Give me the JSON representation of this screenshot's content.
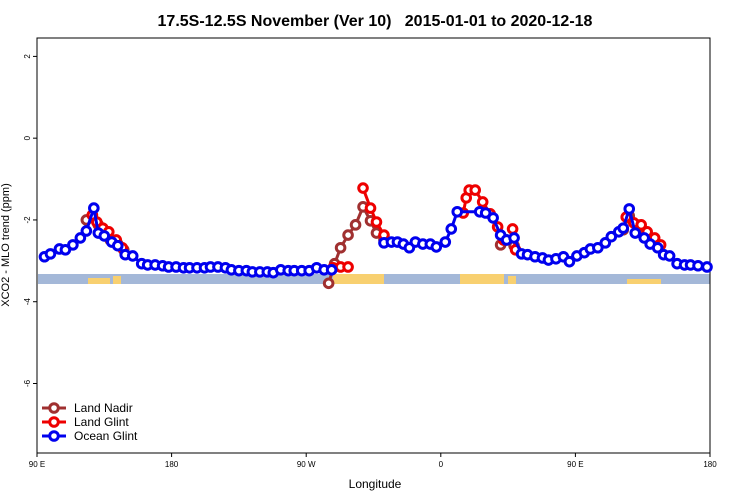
{
  "chart_data": {
    "type": "line",
    "title": "17.5S-12.5S November (Ver 10)   2015-01-01 to 2020-12-18",
    "xlabel": "Longitude",
    "ylabel": "XCO2 - MLO trend (ppm)",
    "xlim": [
      90,
      540
    ],
    "ylim": [
      -7.7,
      2.45
    ],
    "xticks": [
      {
        "value": 90,
        "label": "90 E"
      },
      {
        "value": 180,
        "label": "180"
      },
      {
        "value": 270,
        "label": "90 W"
      },
      {
        "value": 360,
        "label": "0"
      },
      {
        "value": 450,
        "label": "90 E"
      },
      {
        "value": 540,
        "label": "180"
      }
    ],
    "yticks": [
      2,
      0,
      -2,
      -4,
      -6
    ],
    "legend": "bottom-left",
    "series": [
      {
        "name": "Land Nadir",
        "color": "#a03030",
        "x": [
          123,
          127,
          131,
          135,
          139,
          144,
          148,
          200,
          285,
          289,
          293,
          298,
          303,
          308,
          313,
          317,
          322,
          360,
          400,
          404,
          409,
          440,
          482,
          486,
          491,
          496,
          500,
          505
        ],
        "values": [
          -2.0,
          -1.88,
          -2.12,
          -2.29,
          -2.49,
          -2.59,
          -2.73,
          null,
          -3.55,
          -3.07,
          -2.68,
          -2.37,
          -2.12,
          -1.68,
          -2.02,
          -2.32,
          -2.49,
          null,
          -2.61,
          -2.49,
          -2.63,
          null,
          -2.24,
          -1.9,
          -2.12,
          -2.29,
          -2.49,
          -2.63
        ]
      },
      {
        "name": "Land Glint",
        "color": "#ee0000",
        "x": [
          127,
          130,
          134,
          138,
          143,
          147,
          200,
          288,
          293,
          298,
          303,
          308,
          313,
          317,
          322,
          350,
          375,
          377,
          379,
          383,
          388,
          393,
          398,
          402,
          405,
          408,
          410,
          440,
          484,
          489,
          494,
          498,
          503,
          507
        ],
        "values": [
          -1.88,
          -2.05,
          -2.2,
          -2.29,
          -2.49,
          -2.68,
          null,
          -3.17,
          -3.15,
          -3.15,
          null,
          -1.22,
          -1.71,
          -2.05,
          -2.37,
          null,
          -1.83,
          -1.46,
          -1.27,
          -1.27,
          -1.56,
          -1.85,
          -2.17,
          -2.49,
          null,
          -2.22,
          -2.73,
          null,
          -1.93,
          -2.07,
          -2.12,
          -2.29,
          -2.44,
          -2.61
        ]
      },
      {
        "name": "Ocean Glint",
        "color": "#0000ee",
        "x": [
          95,
          99,
          105,
          109,
          114,
          119,
          123,
          128,
          131,
          135,
          140,
          144,
          149,
          154,
          160,
          164,
          169,
          174,
          178,
          183,
          188,
          192,
          197,
          202,
          206,
          211,
          216,
          220,
          225,
          230,
          234,
          239,
          244,
          248,
          253,
          258,
          262,
          267,
          272,
          277,
          282,
          287,
          305,
          322,
          327,
          331,
          335,
          339,
          343,
          348,
          353,
          357,
          363,
          367,
          371,
          386,
          390,
          395,
          400,
          404,
          409,
          414,
          418,
          423,
          428,
          432,
          437,
          442,
          446,
          451,
          456,
          460,
          465,
          470,
          474,
          479,
          482,
          486,
          490,
          496,
          500,
          505,
          509,
          513,
          518,
          523,
          527,
          532,
          538
        ],
        "values": [
          -2.9,
          -2.83,
          -2.71,
          -2.73,
          -2.61,
          -2.44,
          -2.27,
          -1.71,
          -2.32,
          -2.39,
          -2.54,
          -2.63,
          -2.85,
          -2.88,
          -3.07,
          -3.1,
          -3.1,
          -3.12,
          -3.15,
          -3.15,
          -3.17,
          -3.17,
          -3.17,
          -3.17,
          -3.15,
          -3.15,
          -3.17,
          -3.22,
          -3.24,
          -3.24,
          -3.27,
          -3.27,
          -3.27,
          -3.29,
          -3.22,
          -3.24,
          -3.24,
          -3.24,
          -3.24,
          -3.17,
          -3.22,
          -3.22,
          null,
          -2.56,
          -2.54,
          -2.54,
          -2.59,
          -2.68,
          -2.54,
          -2.59,
          -2.59,
          -2.66,
          -2.54,
          -2.22,
          -1.8,
          -1.8,
          -1.83,
          -1.95,
          -2.37,
          -2.49,
          -2.44,
          -2.83,
          -2.85,
          -2.9,
          -2.93,
          -2.98,
          -2.95,
          -2.9,
          -3.02,
          -2.88,
          -2.8,
          -2.71,
          -2.68,
          -2.56,
          -2.41,
          -2.29,
          -2.2,
          -1.73,
          -2.32,
          -2.44,
          -2.59,
          -2.68,
          -2.85,
          -2.88,
          -3.07,
          -3.1,
          -3.1,
          -3.12,
          -3.15
        ]
      }
    ]
  }
}
